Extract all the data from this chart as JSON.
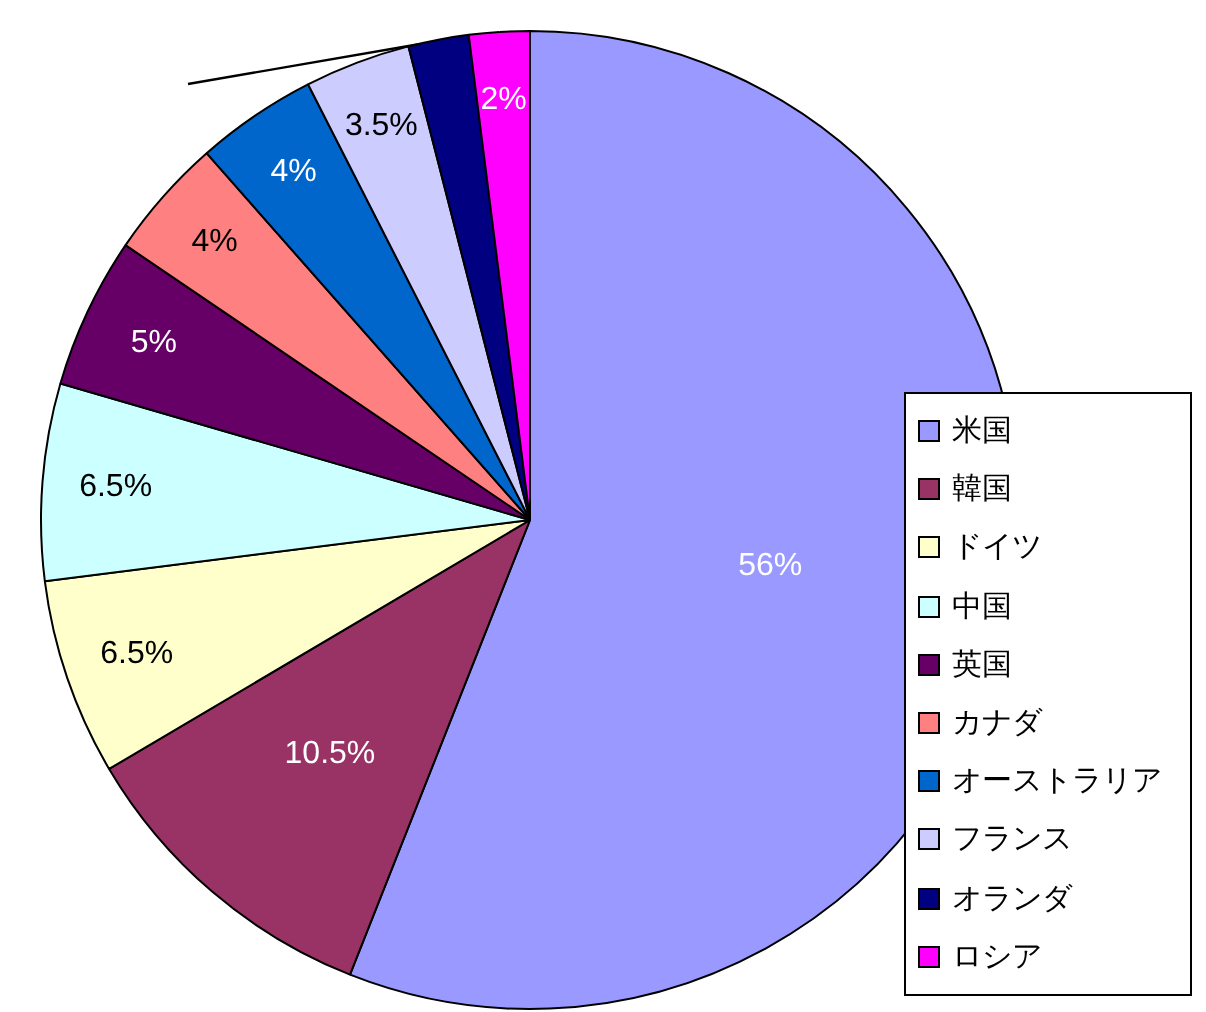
{
  "chart_data": {
    "type": "pie",
    "categories": [
      "米国",
      "韓国",
      "ドイツ",
      "中国",
      "英国",
      "カナダ",
      "オーストラリア",
      "フランス",
      "オランダ",
      "ロシア"
    ],
    "values": [
      56,
      10.5,
      6.5,
      6.5,
      5,
      4,
      4,
      3.5,
      2,
      2
    ],
    "colors": [
      "#9999ff",
      "#993366",
      "#ffffcc",
      "#ccffff",
      "#660066",
      "#ff8080",
      "#0066cc",
      "#ccccff",
      "#000080",
      "#ff00ff"
    ],
    "value_labels": [
      "56%",
      "10.5%",
      "6.5%",
      "6.5%",
      "5%",
      "4%",
      "4%",
      "3.5%",
      null,
      "2%"
    ],
    "legend": "right"
  }
}
